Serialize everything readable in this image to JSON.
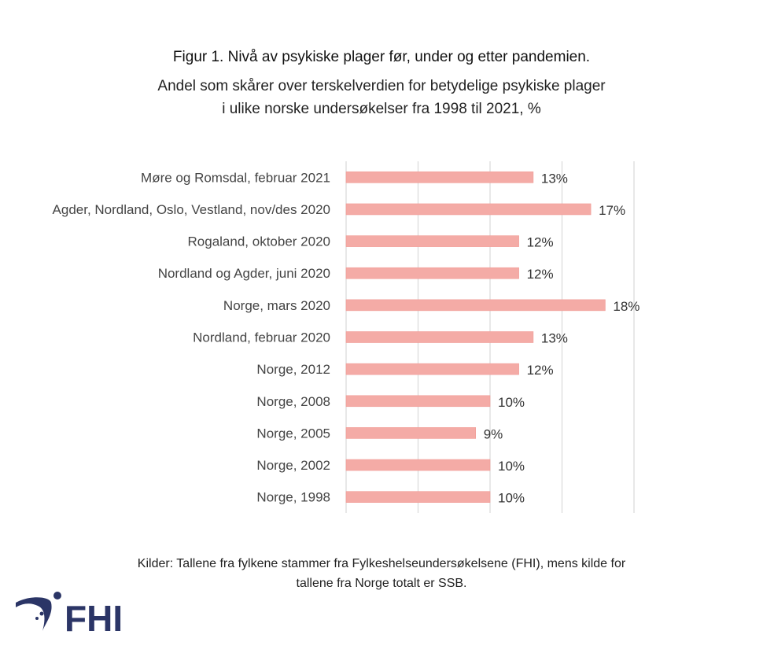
{
  "chart_data": {
    "type": "bar",
    "orientation": "horizontal",
    "title": "Figur 1. Nivå av psykiske plager før, under og etter pandemien.",
    "subtitle": [
      "Andel som skårer over terskelverdien for betydelige psykiske plager",
      "i ulike norske undersøkelser fra 1998 til 2021, %"
    ],
    "categories": [
      "Møre og Romsdal, februar 2021",
      "Agder, Nordland, Oslo, Vestland, nov/des 2020",
      "Rogaland, oktober 2020",
      "Nordland og Agder, juni 2020",
      "Norge, mars 2020",
      "Nordland, februar 2020",
      "Norge, 2012",
      "Norge, 2008",
      "Norge, 2005",
      "Norge, 2002",
      "Norge, 1998"
    ],
    "values": [
      13,
      17,
      12,
      12,
      18,
      13,
      12,
      10,
      9,
      10,
      10
    ],
    "data_labels": [
      "13%",
      "17%",
      "12%",
      "12%",
      "18%",
      "13%",
      "12%",
      "10%",
      "9%",
      "10%",
      "10%"
    ],
    "xlim": [
      0,
      20
    ],
    "gridlines_at": [
      0,
      5,
      10,
      15,
      20
    ],
    "grid": true,
    "bar_color": "#F4ABA6",
    "xlabel": "",
    "ylabel": ""
  },
  "source": [
    "Kilder: Tallene fra fylkene stammer fra Fylkeshelseundersøkelsene (FHI), mens kilde for",
    "tallene fra Norge totalt er SSB."
  ],
  "logo": {
    "text": "FHI",
    "color": "#2B3566"
  }
}
